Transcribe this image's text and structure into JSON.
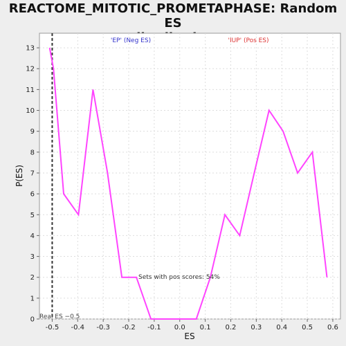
{
  "chart_data": {
    "type": "line",
    "title": "REACTOME_MITOTIC_PROMETAPHASE: Random ES distribution",
    "title_lines": [
      "REACTOME_MITOTIC_PROMETAPHASE: Random ES",
      "distribution"
    ],
    "xlabel": "ES",
    "ylabel": "P(ES)",
    "xlim": [
      -0.55,
      0.63
    ],
    "ylim": [
      0,
      13.7
    ],
    "xticks": [
      -0.5,
      -0.4,
      -0.3,
      -0.2,
      -0.1,
      0.0,
      0.1,
      0.2,
      0.3,
      0.4,
      0.5,
      0.6
    ],
    "xtick_labels": [
      "-0.5",
      "-0.4",
      "-0.3",
      "-0.2",
      "-0.1",
      "0.0",
      "0.1",
      "0.2",
      "0.3",
      "0.4",
      "0.5",
      "0.6"
    ],
    "yticks": [
      0,
      1,
      2,
      3,
      4,
      5,
      6,
      7,
      8,
      9,
      10,
      11,
      12,
      13
    ],
    "ytick_labels": [
      "0",
      "1",
      "2",
      "3",
      "4",
      "5",
      "6",
      "7",
      "8",
      "9",
      "10",
      "11",
      "12",
      "13"
    ],
    "grid": true,
    "series": [
      {
        "color": "#ff44ff",
        "x": [
          -0.51,
          -0.495,
          -0.455,
          -0.397,
          -0.34,
          -0.283,
          -0.227,
          -0.17,
          -0.113,
          -0.056,
          0.0,
          0.065,
          0.12,
          0.177,
          0.235,
          0.292,
          0.35,
          0.405,
          0.462,
          0.52,
          0.577
        ],
        "y": [
          13,
          12,
          6,
          5,
          11,
          7,
          2,
          2,
          0,
          0,
          0,
          0,
          2,
          5,
          4,
          7,
          10,
          9,
          7,
          8,
          2
        ]
      }
    ],
    "real_es_value": -0.5,
    "annotations": {
      "neg": {
        "text": "'EP' (Neg ES)",
        "color": "#3333cc"
      },
      "pos": {
        "text": "'IUP' (Pos ES)",
        "color": "#dd3333"
      },
      "pos_scores": {
        "text": "Sets with pos scores: 54%",
        "color": "#333333"
      },
      "real_es": {
        "text": "Real ES −0.5",
        "color": "#444444"
      }
    },
    "colors": {
      "line": "#ff44ff",
      "plot_bg": "#ffffff",
      "page_bg": "#eeeeee",
      "grid": "#dddddd"
    }
  }
}
